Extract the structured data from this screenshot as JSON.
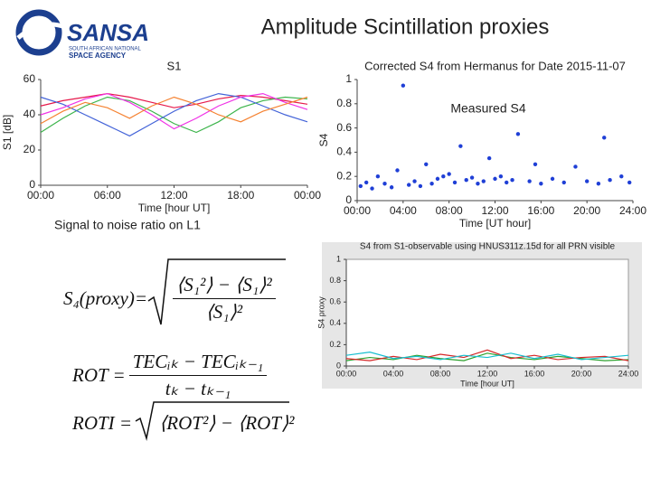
{
  "header": {
    "logo_name": "SANSA",
    "logo_line1": "SOUTH AFRICAN NATIONAL",
    "logo_line2": "SPACE AGENCY",
    "title": "Amplitude Scintillation proxies"
  },
  "caption": "Signal to noise ratio on L1",
  "formulas": [
    {
      "lhs": "S₄(proxy)=",
      "numerator": "⟨S₁²⟩ − ⟨S₁⟩²",
      "denominator": "⟨S₁⟩²"
    },
    {
      "lhs": "ROT =",
      "numerator": "TECᵢₖ − TECᵢₖ₋₁",
      "denominator": "tₖ − tₖ₋₁"
    },
    {
      "lhs": "ROTI =",
      "radicand": "⟨ROT²⟩ − ⟨ROT⟩²"
    }
  ],
  "chart_data": [
    {
      "type": "line",
      "title": "S1",
      "x_label": "Time [hour UT]",
      "y_label": "S1 [dB]",
      "x": [
        0,
        2,
        4,
        6,
        8,
        10,
        12,
        14,
        16,
        18,
        20,
        22,
        24
      ],
      "series": [
        {
          "color": "#e6194b",
          "values": [
            45,
            48,
            50,
            52,
            50,
            47,
            44,
            46,
            49,
            51,
            50,
            48,
            46
          ]
        },
        {
          "color": "#3cb44b",
          "values": [
            30,
            38,
            45,
            50,
            48,
            42,
            35,
            30,
            36,
            44,
            48,
            50,
            49
          ]
        },
        {
          "color": "#4363d8",
          "values": [
            50,
            46,
            40,
            34,
            28,
            35,
            42,
            48,
            52,
            50,
            45,
            40,
            36
          ]
        },
        {
          "color": "#f032e6",
          "values": [
            40,
            44,
            49,
            52,
            47,
            40,
            32,
            38,
            45,
            50,
            52,
            47,
            43
          ]
        },
        {
          "color": "#f58231",
          "values": [
            35,
            42,
            47,
            44,
            38,
            45,
            50,
            46,
            40,
            36,
            42,
            46,
            50
          ]
        }
      ],
      "xlim": [
        0,
        24
      ],
      "xticks": [
        {
          "value": 0,
          "label": "00:00"
        },
        {
          "value": 6,
          "label": "06:00"
        },
        {
          "value": 12,
          "label": "12:00"
        },
        {
          "value": 18,
          "label": "18:00"
        },
        {
          "value": 24,
          "label": "00:00"
        }
      ],
      "ylim": [
        0,
        60
      ],
      "yticks": [
        0,
        20,
        40,
        60
      ]
    },
    {
      "type": "scatter",
      "title": "Corrected S4 from Hermanus for Date 2015-11-07",
      "x_label": "Time [UT hour]",
      "y_label": "S4",
      "annotation": "Measured S4",
      "color": "#1f3fd6",
      "x": [
        0.3,
        0.8,
        1.3,
        1.8,
        2.4,
        3.0,
        3.5,
        4.0,
        4.5,
        5.0,
        5.5,
        6.0,
        6.5,
        7.0,
        7.5,
        8.0,
        8.5,
        9.0,
        9.5,
        10.0,
        10.5,
        11.0,
        11.5,
        12.0,
        12.5,
        13.0,
        13.5,
        14.0,
        15.0,
        15.5,
        16.0,
        17.0,
        18.0,
        19.0,
        20.0,
        21.0,
        21.5,
        22.0,
        23.0,
        23.7
      ],
      "values": [
        0.12,
        0.15,
        0.1,
        0.2,
        0.14,
        0.11,
        0.25,
        0.95,
        0.13,
        0.16,
        0.12,
        0.3,
        0.14,
        0.18,
        0.2,
        0.22,
        0.15,
        0.45,
        0.17,
        0.19,
        0.14,
        0.16,
        0.35,
        0.18,
        0.2,
        0.15,
        0.17,
        0.55,
        0.16,
        0.3,
        0.14,
        0.18,
        0.15,
        0.28,
        0.16,
        0.14,
        0.52,
        0.17,
        0.2,
        0.15
      ],
      "xlim": [
        0,
        24
      ],
      "xticks": [
        {
          "value": 0,
          "label": "00:00"
        },
        {
          "value": 4,
          "label": "04:00"
        },
        {
          "value": 8,
          "label": "08:00"
        },
        {
          "value": 12,
          "label": "12:00"
        },
        {
          "value": 16,
          "label": "16:00"
        },
        {
          "value": 20,
          "label": "20:00"
        },
        {
          "value": 24,
          "label": "24:00"
        }
      ],
      "ylim": [
        0,
        1
      ],
      "yticks": [
        0,
        0.2,
        0.4,
        0.6,
        0.8,
        1
      ]
    },
    {
      "type": "line",
      "title": "S4 from S1-observable using HNUS311z.15d for all PRN visible",
      "x_label": "Time [hour UT]",
      "y_label": "S4 proxy",
      "x": [
        0,
        2,
        4,
        6,
        8,
        10,
        12,
        14,
        16,
        18,
        20,
        22,
        24
      ],
      "series": [
        {
          "color": "#2ca02c",
          "values": [
            0.05,
            0.08,
            0.06,
            0.1,
            0.07,
            0.05,
            0.12,
            0.08,
            0.06,
            0.09,
            0.07,
            0.05,
            0.06
          ]
        },
        {
          "color": "#d62728",
          "values": [
            0.07,
            0.05,
            0.09,
            0.06,
            0.11,
            0.08,
            0.15,
            0.07,
            0.1,
            0.06,
            0.08,
            0.09,
            0.05
          ]
        },
        {
          "color": "#17becf",
          "values": [
            0.1,
            0.13,
            0.07,
            0.09,
            0.06,
            0.1,
            0.08,
            0.12,
            0.07,
            0.11,
            0.06,
            0.08,
            0.1
          ]
        }
      ],
      "xlim": [
        0,
        24
      ],
      "xticks": [
        {
          "value": 0,
          "label": "00:00"
        },
        {
          "value": 4,
          "label": "04:00"
        },
        {
          "value": 8,
          "label": "08:00"
        },
        {
          "value": 12,
          "label": "12:00"
        },
        {
          "value": 16,
          "label": "16:00"
        },
        {
          "value": 20,
          "label": "20:00"
        },
        {
          "value": 24,
          "label": "24:00"
        }
      ],
      "ylim": [
        0,
        1
      ],
      "yticks": [
        0,
        0.2,
        0.4,
        0.6,
        0.8,
        1
      ]
    }
  ]
}
